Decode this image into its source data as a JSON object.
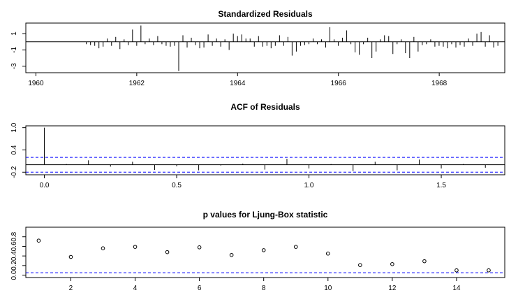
{
  "chart_data": [
    {
      "type": "bar",
      "title": "Standardized Residuals",
      "xlabel": "",
      "ylabel": "",
      "xlim": [
        1959.8,
        1969.3
      ],
      "ylim": [
        -3.8,
        2.3
      ],
      "x_ticks": [
        1960,
        1962,
        1964,
        1966,
        1968
      ],
      "x_tick_labels": [
        "1960",
        "1962",
        "1964",
        "1966",
        "1968"
      ],
      "y_ticks": [
        1,
        -1,
        -3
      ],
      "y_tick_labels": [
        "1",
        "-1",
        "-3"
      ],
      "reference_line": 0,
      "x_start": 1961.0,
      "x_step": 0.0833,
      "values": [
        -0.3,
        -0.4,
        -0.5,
        -0.8,
        -0.6,
        0.4,
        -0.5,
        0.6,
        -0.9,
        0.3,
        -0.4,
        1.5,
        -0.5,
        2.0,
        -0.3,
        0.4,
        -0.4,
        0.7,
        -0.3,
        -0.5,
        -0.6,
        -0.5,
        -3.6,
        0.8,
        -0.7,
        0.5,
        -0.4,
        -0.8,
        -0.7,
        0.9,
        -0.5,
        0.4,
        -0.6,
        0.3,
        -1.0,
        1.0,
        0.7,
        0.9,
        0.4,
        0.4,
        -0.6,
        0.7,
        -0.6,
        -0.5,
        -0.8,
        -0.5,
        0.8,
        -0.5,
        0.6,
        -1.7,
        -1.2,
        -0.5,
        -0.4,
        -0.3,
        0.4,
        -0.3,
        0.3,
        -0.7,
        1.8,
        0.3,
        -0.5,
        0.5,
        1.4,
        -0.3,
        -1.3,
        -1.6,
        -0.3,
        0.5,
        -2.0,
        -1.2,
        0.3,
        0.8,
        0.7,
        -1.5,
        -0.3,
        0.3,
        -1.4,
        -2.0,
        0.6,
        -1.2,
        -0.4,
        -0.3,
        0.3,
        -0.6,
        -0.5,
        -0.6,
        -0.8,
        -0.3,
        -0.7,
        -0.4,
        -0.6,
        0.4,
        -0.5,
        1.0,
        1.2,
        -0.6,
        0.8,
        -0.7,
        -0.5
      ]
    },
    {
      "type": "bar",
      "title": "ACF of Residuals",
      "xlabel": "",
      "ylabel": "",
      "xlim": [
        -0.07,
        1.74
      ],
      "ylim": [
        -0.27,
        1.05
      ],
      "x_ticks": [
        0.0,
        0.5,
        1.0,
        1.5
      ],
      "x_tick_labels": [
        "0.0",
        "0.5",
        "1.0",
        "1.5"
      ],
      "y_ticks": [
        1.0,
        0.4,
        -0.2
      ],
      "y_tick_labels": [
        "1.0",
        "0.4",
        "-0.2"
      ],
      "reference_line": 0,
      "confidence_band": [
        -0.2,
        0.2
      ],
      "lags": [
        0.0,
        0.0833,
        0.1667,
        0.25,
        0.3333,
        0.4167,
        0.5,
        0.5833,
        0.6667,
        0.75,
        0.8333,
        0.9167,
        1.0,
        1.0833,
        1.1667,
        1.25,
        1.3333,
        1.4167,
        1.5,
        1.5833,
        1.6667
      ],
      "values": [
        1.0,
        0.02,
        0.12,
        -0.05,
        0.08,
        -0.14,
        -0.04,
        -0.15,
        -0.02,
        0.03,
        -0.13,
        0.16,
        -0.1,
        0.02,
        -0.17,
        0.08,
        -0.15,
        0.14,
        -0.1,
        0.02,
        -0.08
      ]
    },
    {
      "type": "scatter",
      "title": "p values for Ljung-Box statistic",
      "xlabel": "",
      "ylabel": "",
      "xlim": [
        0.6,
        15.5
      ],
      "ylim": [
        -0.05,
        1.0
      ],
      "x_ticks": [
        2,
        4,
        6,
        8,
        10,
        12,
        14
      ],
      "x_tick_labels": [
        "2",
        "4",
        "6",
        "8",
        "10",
        "12",
        "14"
      ],
      "y_ticks": [
        0.0,
        0.2,
        0.4,
        0.6,
        0.8
      ],
      "y_tick_labels": [
        "0.0",
        "0.2",
        "0.4",
        "0.6",
        "0.8"
      ],
      "significance_line": 0.05,
      "x": [
        1,
        2,
        3,
        4,
        5,
        6,
        7,
        8,
        9,
        10,
        11,
        12,
        13,
        14,
        15
      ],
      "y": [
        0.72,
        0.38,
        0.56,
        0.59,
        0.48,
        0.58,
        0.42,
        0.52,
        0.59,
        0.45,
        0.21,
        0.23,
        0.29,
        0.1,
        0.1
      ]
    }
  ]
}
